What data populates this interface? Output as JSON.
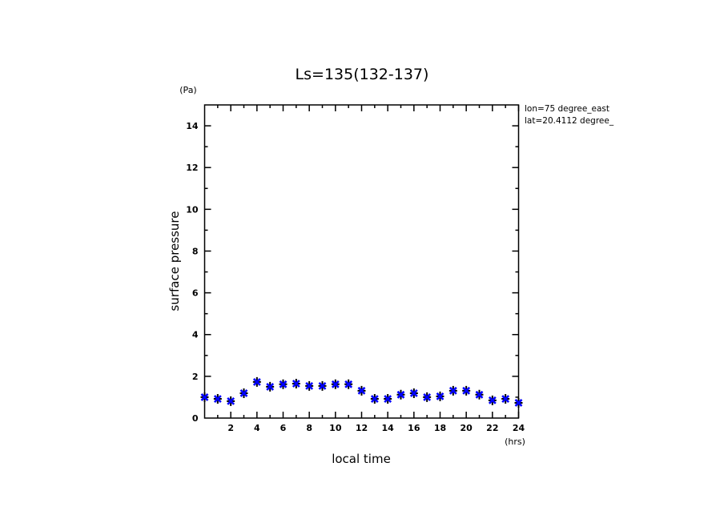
{
  "chart_data": {
    "type": "scatter",
    "title": "Ls=135(132-137)",
    "xlabel": "local time",
    "ylabel": "surface pressure",
    "xunit": "(hrs)",
    "yunit": "(Pa)",
    "xlim": [
      0,
      24
    ],
    "ylim": [
      0,
      15
    ],
    "xticks": [
      2,
      4,
      6,
      8,
      10,
      12,
      14,
      16,
      18,
      20,
      22,
      24
    ],
    "yticks": [
      0,
      2,
      4,
      6,
      8,
      10,
      12,
      14
    ],
    "grid": false,
    "annotations": [
      "lon=75 degree_east",
      "lat=20.4112 degree_"
    ],
    "marker_color": "#0000ff",
    "x": [
      0,
      1,
      2,
      3,
      4,
      5,
      6,
      7,
      8,
      9,
      10,
      11,
      12,
      13,
      14,
      15,
      16,
      17,
      18,
      19,
      20,
      21,
      22,
      23,
      24
    ],
    "y": [
      1.0,
      0.92,
      0.81,
      1.19,
      1.73,
      1.5,
      1.62,
      1.65,
      1.54,
      1.54,
      1.62,
      1.62,
      1.31,
      0.92,
      0.92,
      1.12,
      1.19,
      1.0,
      1.04,
      1.31,
      1.31,
      1.12,
      0.85,
      0.92,
      0.73
    ]
  }
}
